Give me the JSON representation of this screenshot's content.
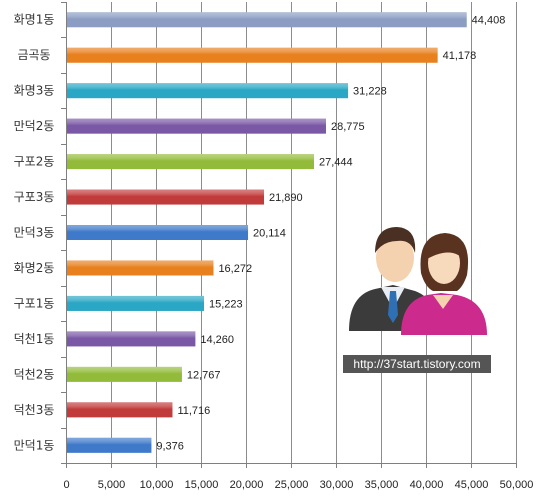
{
  "chart_data": {
    "type": "bar",
    "orientation": "horizontal",
    "categories": [
      "화명1동",
      "금곡동",
      "화명3동",
      "만덕2동",
      "구포2동",
      "구포3동",
      "만덕3동",
      "화명2동",
      "구포1동",
      "덕천1동",
      "덕천2동",
      "덕천3동",
      "만덕1동"
    ],
    "values": [
      44408,
      41178,
      31228,
      28775,
      27444,
      21890,
      20114,
      16272,
      15223,
      14260,
      12767,
      11716,
      9376
    ],
    "value_labels": [
      "44,408",
      "41,178",
      "31,228",
      "28,775",
      "27,444",
      "21,890",
      "20,114",
      "16,272",
      "15,223",
      "14,260",
      "12,767",
      "11,716",
      "9,376"
    ],
    "colors": [
      "#8b9dc3",
      "#e8801e",
      "#2aa7c4",
      "#7a58a6",
      "#93bb3a",
      "#c23b3b",
      "#3f79c9",
      "#e8801e",
      "#2aa7c4",
      "#7a58a6",
      "#93bb3a",
      "#c23b3b",
      "#3f79c9"
    ],
    "xlim": [
      0,
      50000
    ],
    "xticks": [
      0,
      5000,
      10000,
      15000,
      20000,
      25000,
      30000,
      35000,
      40000,
      45000,
      50000
    ],
    "xtick_labels": [
      "0",
      "5,000",
      "10,000",
      "15,000",
      "20,000",
      "25,000",
      "30,000",
      "35,000",
      "40,000",
      "45,000",
      "50,000"
    ],
    "grid": "vertical",
    "title": "",
    "xlabel": "",
    "ylabel": ""
  },
  "watermark": "http://37start.tistory.com",
  "icon": "people-couple-icon"
}
